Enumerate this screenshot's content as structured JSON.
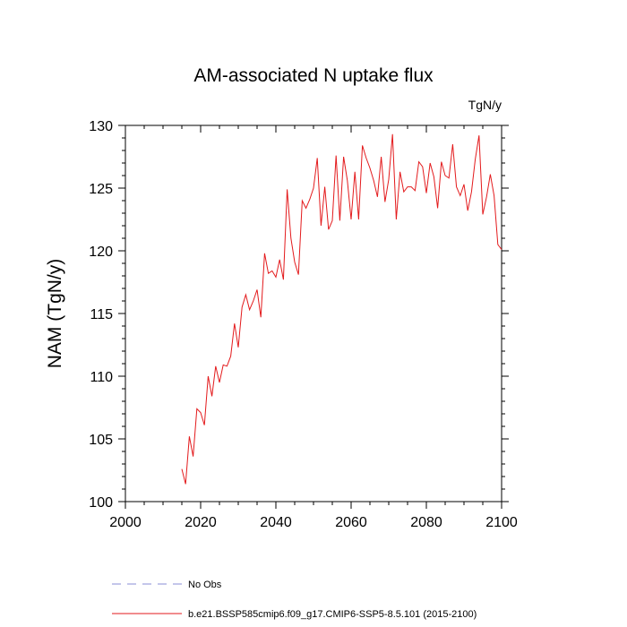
{
  "chart_data": {
    "type": "line",
    "title": "AM-associated N uptake flux",
    "units_label": "TgN/y",
    "ylabel": "NAM  (TgN/y)",
    "xlabel": "",
    "xlim": [
      2000,
      2100
    ],
    "ylim": [
      100,
      130
    ],
    "xticks": [
      "2000",
      "2020",
      "2040",
      "2060",
      "2080",
      "2100"
    ],
    "yticks": [
      "100",
      "105",
      "110",
      "115",
      "120",
      "125",
      "130"
    ],
    "grid": false,
    "legend_position": "bottom",
    "series": [
      {
        "name": "No Obs",
        "style": "dashed",
        "color": "#8a8cd6",
        "x": [],
        "y": []
      },
      {
        "name": "b.e21.BSSP585cmip6.f09_g17.CMIP6-SSP5-8.5.101 (2015-2100)",
        "style": "solid",
        "color": "#e31a1c",
        "x": [
          2015,
          2016,
          2017,
          2018,
          2019,
          2020,
          2021,
          2022,
          2023,
          2024,
          2025,
          2026,
          2027,
          2028,
          2029,
          2030,
          2031,
          2032,
          2033,
          2034,
          2035,
          2036,
          2037,
          2038,
          2039,
          2040,
          2041,
          2042,
          2043,
          2044,
          2045,
          2046,
          2047,
          2048,
          2049,
          2050,
          2051,
          2052,
          2053,
          2054,
          2055,
          2056,
          2057,
          2058,
          2059,
          2060,
          2061,
          2062,
          2063,
          2064,
          2065,
          2066,
          2067,
          2068,
          2069,
          2070,
          2071,
          2072,
          2073,
          2074,
          2075,
          2076,
          2077,
          2078,
          2079,
          2080,
          2081,
          2082,
          2083,
          2084,
          2085,
          2086,
          2087,
          2088,
          2089,
          2090,
          2091,
          2092,
          2093,
          2094,
          2095,
          2096,
          2097,
          2098,
          2099,
          2100
        ],
        "y": [
          102.6,
          101.4,
          105.2,
          103.6,
          107.4,
          107.1,
          106.1,
          110.0,
          108.4,
          110.8,
          109.5,
          110.9,
          110.8,
          111.6,
          114.2,
          112.3,
          115.5,
          116.5,
          115.3,
          116.0,
          116.9,
          114.7,
          119.8,
          118.2,
          118.4,
          117.9,
          119.3,
          117.7,
          124.9,
          121.0,
          119.1,
          118.1,
          124.0,
          123.4,
          124.1,
          125.0,
          127.4,
          122.0,
          125.1,
          121.7,
          122.4,
          127.6,
          122.4,
          127.5,
          125.6,
          122.5,
          126.3,
          122.5,
          128.4,
          127.4,
          126.6,
          125.6,
          124.3,
          127.5,
          123.9,
          125.7,
          129.3,
          122.5,
          126.3,
          124.7,
          125.1,
          125.1,
          124.8,
          127.1,
          126.7,
          124.6,
          127.0,
          125.9,
          123.4,
          127.1,
          126.0,
          125.8,
          128.5,
          125.1,
          124.4,
          125.3,
          123.2,
          124.7,
          127.3,
          129.2,
          122.9,
          124.3,
          126.1,
          124.4,
          120.5,
          120.1
        ]
      }
    ]
  }
}
